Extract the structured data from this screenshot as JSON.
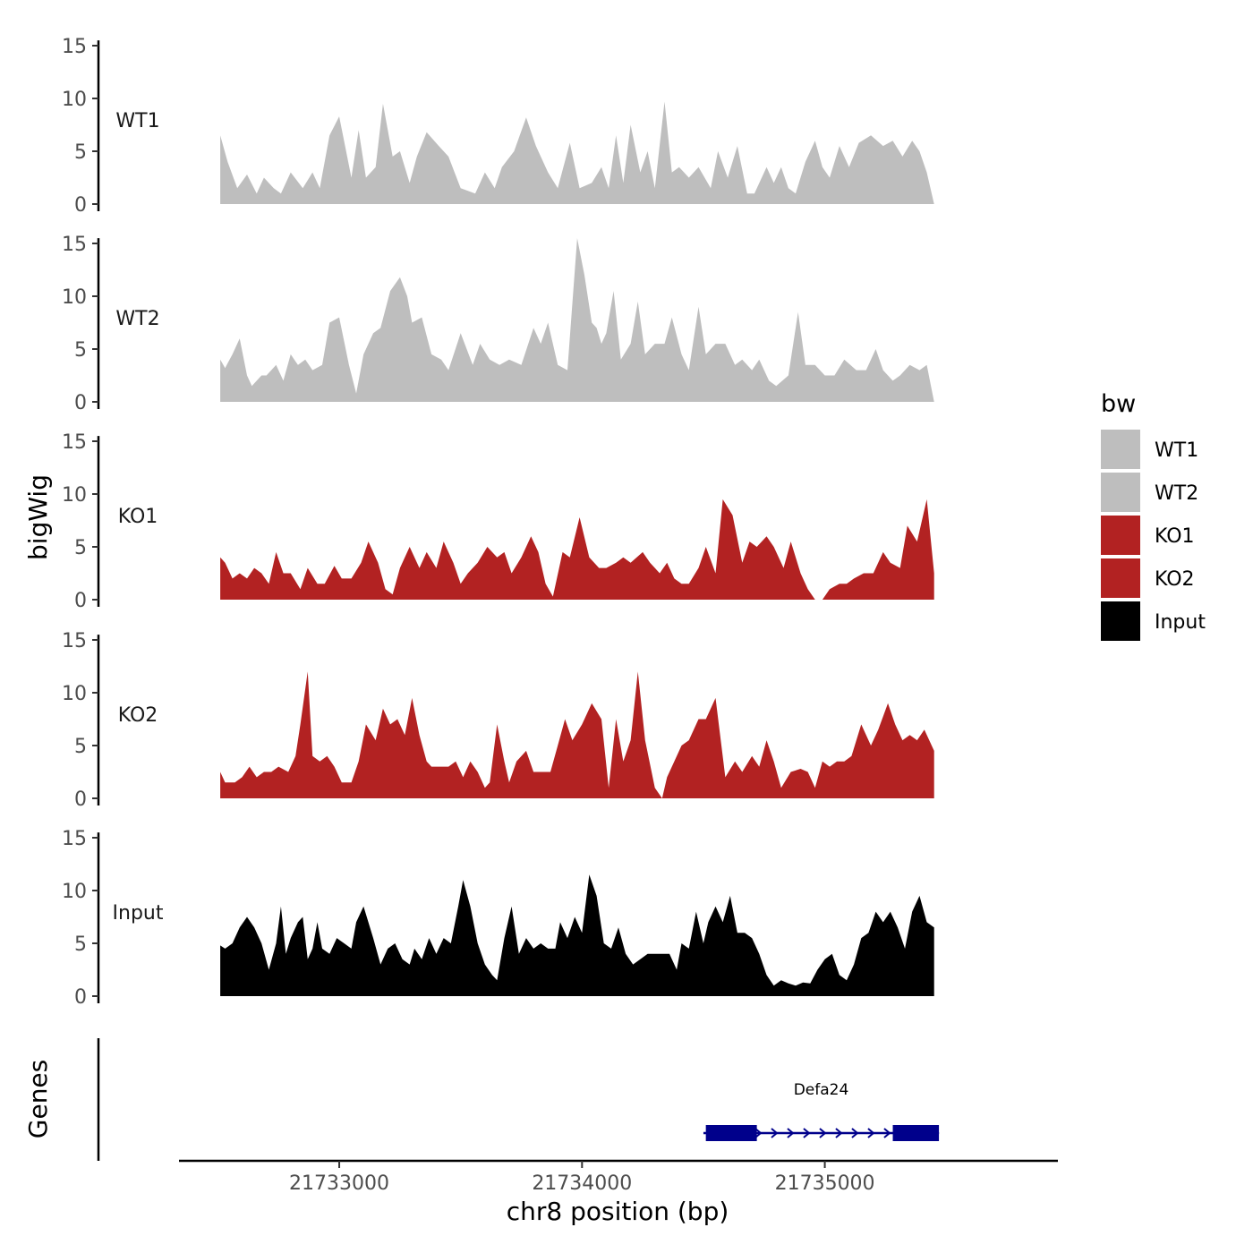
{
  "chart_data": {
    "type": "area",
    "ylabel": "bigWig",
    "xlabel": "chr8 position (bp)",
    "xlim": [
      21732340,
      21735960
    ],
    "ylim": [
      0,
      15
    ],
    "y_ticks": [
      0,
      5,
      10,
      15
    ],
    "x_ticks": [
      21733000,
      21734000,
      21735000
    ],
    "x_tick_labels": [
      "21733000",
      "21734000",
      "21735000"
    ],
    "legend": {
      "title": "bw",
      "entries": [
        {
          "label": "WT1",
          "color": "#bebebe"
        },
        {
          "label": "WT2",
          "color": "#bebebe"
        },
        {
          "label": "KO1",
          "color": "#b22222"
        },
        {
          "label": "KO2",
          "color": "#b22222"
        },
        {
          "label": "Input",
          "color": "#000000"
        }
      ]
    },
    "tracks": [
      {
        "name": "WT1",
        "color": "#bebebe",
        "x": [
          21732510,
          21732540,
          21732580,
          21732620,
          21732660,
          21732690,
          21732730,
          21732760,
          21732800,
          21732850,
          21732890,
          21732920,
          21732960,
          21733000,
          21733050,
          21733080,
          21733110,
          21733150,
          21733180,
          21733220,
          21733250,
          21733290,
          21733320,
          21733360,
          21733410,
          21733450,
          21733500,
          21733560,
          21733600,
          21733640,
          21733670,
          21733720,
          21733770,
          21733810,
          21733860,
          21733900,
          21733950,
          21733990,
          21734040,
          21734080,
          21734110,
          21734140,
          21734170,
          21734200,
          21734240,
          21734270,
          21734300,
          21734340,
          21734370,
          21734400,
          21734440,
          21734480,
          21734530,
          21734560,
          21734600,
          21734640,
          21734680,
          21734710,
          21734760,
          21734790,
          21734820,
          21734850,
          21734880,
          21734920,
          21734960,
          21734990,
          21735020,
          21735060,
          21735100,
          21735140,
          21735190,
          21735240,
          21735280,
          21735320,
          21735360,
          21735390,
          21735420,
          21735450
        ],
        "y": [
          6.5,
          4.0,
          1.5,
          2.8,
          1.0,
          2.5,
          1.5,
          1.0,
          3.0,
          1.5,
          3.0,
          1.5,
          6.5,
          8.3,
          2.5,
          7.0,
          2.5,
          3.5,
          9.5,
          4.5,
          5.0,
          2.0,
          4.5,
          6.8,
          5.5,
          4.5,
          1.5,
          1.0,
          3.0,
          1.5,
          3.5,
          5.0,
          8.2,
          5.5,
          3.0,
          1.5,
          5.8,
          1.5,
          2.0,
          3.5,
          1.5,
          6.5,
          2.0,
          7.5,
          3.0,
          5.0,
          1.5,
          9.7,
          3.0,
          3.5,
          2.5,
          3.5,
          1.5,
          5.0,
          2.5,
          5.5,
          1.0,
          1.0,
          3.5,
          2.0,
          3.5,
          1.5,
          1.0,
          4.0,
          6.0,
          3.5,
          2.5,
          5.5,
          3.5,
          5.8,
          6.5,
          5.5,
          6.0,
          4.5,
          6.0,
          5.0,
          3.0,
          0.0
        ]
      },
      {
        "name": "WT2",
        "color": "#bebebe",
        "x": [
          21732510,
          21732530,
          21732560,
          21732590,
          21732620,
          21732640,
          21732660,
          21732680,
          21732700,
          21732740,
          21732770,
          21732800,
          21732830,
          21732860,
          21732890,
          21732930,
          21732960,
          21733000,
          21733040,
          21733070,
          21733100,
          21733140,
          21733170,
          21733210,
          21733250,
          21733280,
          21733300,
          21733340,
          21733380,
          21733420,
          21733450,
          21733500,
          21733550,
          21733580,
          21733620,
          21733660,
          21733700,
          21733750,
          21733800,
          21733830,
          21733860,
          21733900,
          21733940,
          21733980,
          21734010,
          21734040,
          21734060,
          21734080,
          21734100,
          21734130,
          21734160,
          21734200,
          21734230,
          21734260,
          21734300,
          21734340,
          21734370,
          21734410,
          21734440,
          21734480,
          21734510,
          21734550,
          21734590,
          21734630,
          21734660,
          21734700,
          21734730,
          21734770,
          21734800,
          21734850,
          21734890,
          21734920,
          21734960,
          21735000,
          21735040,
          21735080,
          21735130,
          21735170,
          21735210,
          21735240,
          21735280,
          21735310,
          21735350,
          21735390,
          21735420,
          21735450
        ],
        "y": [
          4.0,
          3.2,
          4.5,
          6.0,
          2.5,
          1.5,
          2.0,
          2.5,
          2.5,
          3.5,
          2.0,
          4.5,
          3.5,
          4.0,
          3.0,
          3.5,
          7.5,
          8.0,
          3.5,
          0.8,
          4.5,
          6.5,
          7.0,
          10.5,
          11.8,
          10.0,
          7.5,
          8.0,
          4.5,
          4.0,
          3.0,
          6.5,
          3.5,
          5.5,
          4.0,
          3.5,
          4.0,
          3.5,
          7.0,
          5.5,
          7.5,
          3.5,
          3.0,
          15.5,
          12.0,
          7.5,
          7.0,
          5.5,
          6.5,
          10.5,
          4.0,
          5.5,
          9.5,
          4.5,
          5.5,
          5.5,
          8.0,
          4.5,
          3.0,
          9.0,
          4.5,
          5.5,
          5.5,
          3.5,
          4.0,
          3.0,
          4.0,
          2.0,
          1.5,
          2.5,
          8.5,
          3.5,
          3.5,
          2.5,
          2.5,
          4.0,
          3.0,
          3.0,
          5.0,
          3.0,
          2.0,
          2.5,
          3.5,
          3.0,
          3.5,
          0.0
        ]
      },
      {
        "name": "KO1",
        "color": "#b22222",
        "x": [
          21732510,
          21732530,
          21732560,
          21732590,
          21732620,
          21732650,
          21732680,
          21732710,
          21732740,
          21732770,
          21732800,
          21732840,
          21732870,
          21732910,
          21732940,
          21732980,
          21733010,
          21733050,
          21733090,
          21733120,
          21733160,
          21733190,
          21733220,
          21733250,
          21733290,
          21733330,
          21733360,
          21733400,
          21733430,
          21733470,
          21733500,
          21733530,
          21733570,
          21733610,
          21733650,
          21733680,
          21733710,
          21733750,
          21733790,
          21733820,
          21733850,
          21733880,
          21733920,
          21733950,
          21733990,
          21734030,
          21734070,
          21734100,
          21734140,
          21734170,
          21734200,
          21734250,
          21734280,
          21734320,
          21734350,
          21734380,
          21734410,
          21734440,
          21734480,
          21734510,
          21734550,
          21734580,
          21734620,
          21734660,
          21734690,
          21734720,
          21734760,
          21734790,
          21734830,
          21734860,
          21734900,
          21734930,
          21734960,
          21734990,
          21735020,
          21735060,
          21735090,
          21735120,
          21735160,
          21735200,
          21735240,
          21735270,
          21735310,
          21735340,
          21735380,
          21735420,
          21735450
        ],
        "y": [
          4.0,
          3.5,
          2.0,
          2.5,
          2.0,
          3.0,
          2.5,
          1.5,
          4.5,
          2.5,
          2.5,
          1.0,
          3.0,
          1.5,
          1.5,
          3.2,
          2.0,
          2.0,
          3.5,
          5.5,
          3.5,
          1.0,
          0.5,
          3.0,
          5.0,
          3.0,
          4.5,
          3.0,
          5.5,
          3.5,
          1.5,
          2.5,
          3.5,
          5.0,
          4.0,
          4.5,
          2.5,
          4.0,
          6.0,
          4.5,
          1.5,
          0.3,
          4.5,
          4.0,
          7.8,
          4.0,
          3.0,
          3.0,
          3.5,
          4.0,
          3.5,
          4.5,
          3.5,
          2.5,
          3.5,
          2.0,
          1.5,
          1.5,
          3.0,
          5.0,
          2.5,
          9.5,
          8.0,
          3.5,
          5.5,
          5.0,
          6.0,
          5.0,
          3.0,
          5.5,
          2.5,
          1.0,
          0.0,
          0.0,
          1.0,
          1.5,
          1.5,
          2.0,
          2.5,
          2.5,
          4.5,
          3.5,
          3.0,
          7.0,
          5.5,
          9.5,
          2.5
        ]
      },
      {
        "name": "KO2",
        "color": "#b22222",
        "x": [
          21732510,
          21732530,
          21732570,
          21732600,
          21732630,
          21732660,
          21732690,
          21732720,
          21732750,
          21732790,
          21732820,
          21732840,
          21732870,
          21732890,
          21732920,
          21732950,
          21732980,
          21733010,
          21733050,
          21733080,
          21733110,
          21733150,
          21733180,
          21733210,
          21733240,
          21733270,
          21733300,
          21733330,
          21733360,
          21733380,
          21733410,
          21733450,
          21733480,
          21733510,
          21733540,
          21733570,
          21733600,
          21733620,
          21733650,
          21733680,
          21733700,
          21733730,
          21733770,
          21733800,
          21733830,
          21733870,
          21733900,
          21733930,
          21733960,
          21734000,
          21734040,
          21734080,
          21734110,
          21734140,
          21734170,
          21734200,
          21734230,
          21734260,
          21734300,
          21734330,
          21734350,
          21734380,
          21734410,
          21734440,
          21734480,
          21734510,
          21734550,
          21734590,
          21734630,
          21734660,
          21734700,
          21734730,
          21734760,
          21734790,
          21734820,
          21734860,
          21734900,
          21734930,
          21734960,
          21734990,
          21735020,
          21735050,
          21735080,
          21735110,
          21735150,
          21735190,
          21735220,
          21735260,
          21735290,
          21735320,
          21735350,
          21735380,
          21735410,
          21735450
        ],
        "y": [
          2.5,
          1.5,
          1.5,
          2.0,
          3.0,
          2.0,
          2.5,
          2.5,
          3.0,
          2.5,
          4.0,
          7.0,
          12.0,
          4.0,
          3.5,
          4.0,
          3.0,
          1.5,
          1.5,
          3.5,
          7.0,
          5.5,
          8.5,
          7.0,
          7.5,
          6.0,
          9.5,
          6.0,
          3.5,
          3.0,
          3.0,
          3.0,
          3.5,
          2.0,
          3.5,
          2.5,
          1.0,
          1.5,
          7.0,
          3.5,
          1.5,
          3.5,
          4.5,
          2.5,
          2.5,
          2.5,
          5.0,
          7.5,
          5.5,
          7.0,
          9.0,
          7.5,
          1.0,
          7.5,
          3.5,
          5.5,
          12.0,
          5.5,
          1.0,
          0.0,
          2.0,
          3.5,
          5.0,
          5.5,
          7.5,
          7.5,
          9.5,
          2.0,
          3.5,
          2.5,
          4.0,
          3.0,
          5.5,
          3.5,
          1.0,
          2.5,
          2.8,
          2.5,
          1.0,
          3.5,
          3.0,
          3.5,
          3.5,
          4.0,
          7.0,
          5.0,
          6.5,
          9.0,
          7.0,
          5.5,
          6.0,
          5.5,
          6.5,
          4.5
        ]
      },
      {
        "name": "Input",
        "color": "#000000",
        "x": [
          21732510,
          21732530,
          21732560,
          21732590,
          21732620,
          21732650,
          21732680,
          21732710,
          21732740,
          21732760,
          21732780,
          21732800,
          21732830,
          21732850,
          21732870,
          21732890,
          21732910,
          21732930,
          21732960,
          21732990,
          21733020,
          21733050,
          21733070,
          21733100,
          21733140,
          21733170,
          21733200,
          21733230,
          21733260,
          21733290,
          21733310,
          21733340,
          21733370,
          21733400,
          21733430,
          21733460,
          21733490,
          21733510,
          21733540,
          21733570,
          21733600,
          21733630,
          21733650,
          21733680,
          21733710,
          21733740,
          21733770,
          21733800,
          21733830,
          21733860,
          21733890,
          21733910,
          21733940,
          21733970,
          21734000,
          21734030,
          21734060,
          21734090,
          21734120,
          21734150,
          21734180,
          21734210,
          21734240,
          21734270,
          21734300,
          21734330,
          21734360,
          21734390,
          21734410,
          21734440,
          21734470,
          21734500,
          21734520,
          21734550,
          21734580,
          21734610,
          21734640,
          21734670,
          21734700,
          21734730,
          21734760,
          21734790,
          21734820,
          21734850,
          21734880,
          21734910,
          21734940,
          21734970,
          21735000,
          21735030,
          21735060,
          21735090,
          21735120,
          21735150,
          21735180,
          21735210,
          21735240,
          21735270,
          21735300,
          21735330,
          21735360,
          21735390,
          21735420,
          21735450
        ],
        "y": [
          4.8,
          4.5,
          5.0,
          6.5,
          7.5,
          6.5,
          5.0,
          2.5,
          5.0,
          8.5,
          4.0,
          5.5,
          7.0,
          7.5,
          3.5,
          4.5,
          7.0,
          4.5,
          4.0,
          5.5,
          5.0,
          4.5,
          7.0,
          8.5,
          5.5,
          3.0,
          4.5,
          5.0,
          3.5,
          3.0,
          4.5,
          3.5,
          5.5,
          4.0,
          5.5,
          5.0,
          8.5,
          11.0,
          8.5,
          5.0,
          3.0,
          2.0,
          1.5,
          5.5,
          8.5,
          4.0,
          5.5,
          4.5,
          5.0,
          4.5,
          4.5,
          7.0,
          5.5,
          7.5,
          6.0,
          11.5,
          9.5,
          5.0,
          4.5,
          6.5,
          4.0,
          3.0,
          3.5,
          4.0,
          4.0,
          4.0,
          4.0,
          2.5,
          5.0,
          4.5,
          8.0,
          5.0,
          7.0,
          8.5,
          7.0,
          9.5,
          6.0,
          6.0,
          5.5,
          4.0,
          2.0,
          1.0,
          1.5,
          1.2,
          1.0,
          1.3,
          1.2,
          2.5,
          3.5,
          4.0,
          2.0,
          1.5,
          3.0,
          5.5,
          6.0,
          8.0,
          7.0,
          8.0,
          6.5,
          4.5,
          8.0,
          9.5,
          7.0,
          6.5
        ]
      }
    ],
    "genes": [
      {
        "name": "Defa24",
        "start": 21734500,
        "end": 21735470,
        "strand": "+",
        "exons": [
          [
            21734510,
            21734720
          ],
          [
            21735280,
            21735470
          ]
        ],
        "color": "#00008b"
      }
    ],
    "genes_panel_label": "Genes"
  }
}
